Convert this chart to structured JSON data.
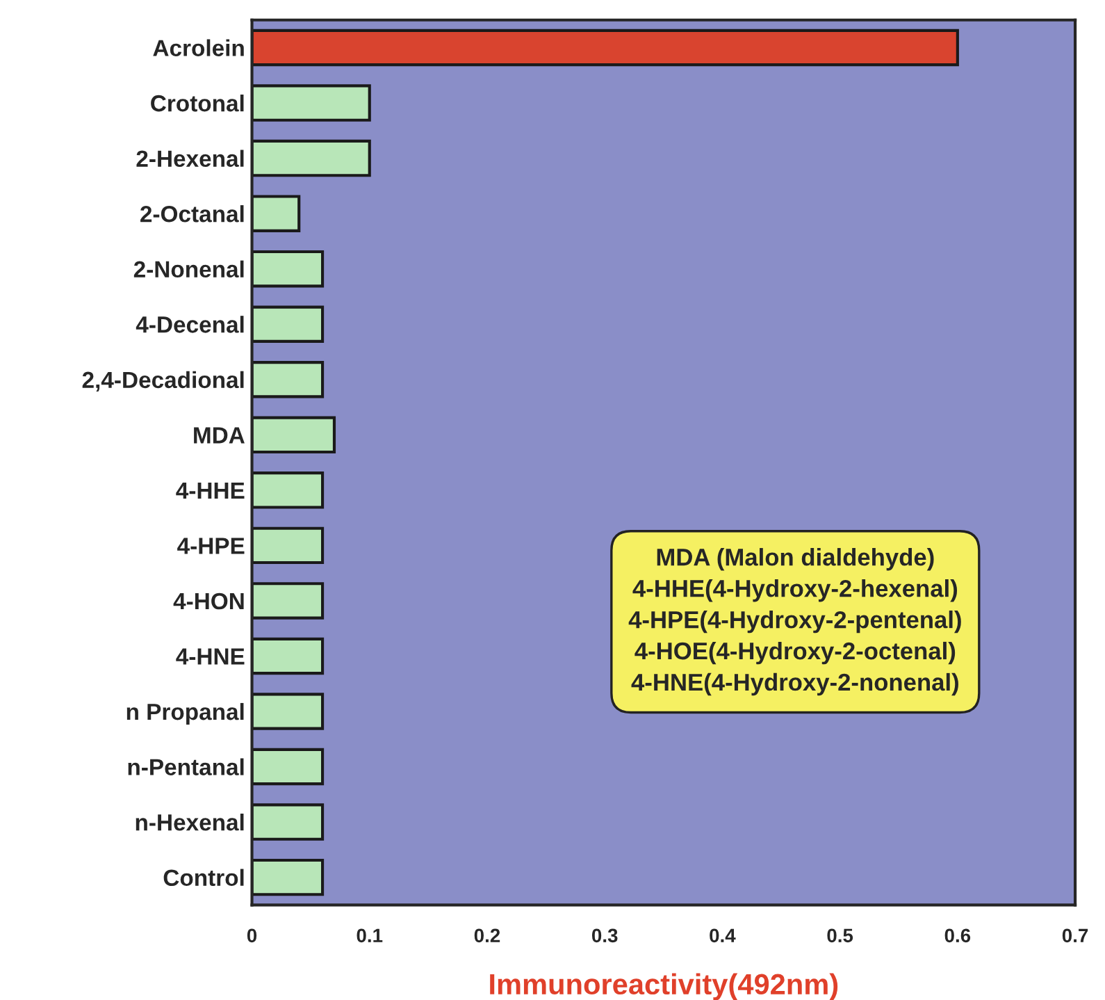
{
  "chart_data": {
    "type": "bar",
    "orientation": "horizontal",
    "categories": [
      "Acrolein",
      "Crotonal",
      "2-Hexenal",
      "2-Octanal",
      "2-Nonenal",
      "4-Decenal",
      "2,4-Decadional",
      "MDA",
      "4-HHE",
      "4-HPE",
      "4-HON",
      "4-HNE",
      "n Propanal",
      "n-Pentanal",
      "n-Hexenal",
      "Control"
    ],
    "values": [
      0.6,
      0.1,
      0.1,
      0.04,
      0.06,
      0.06,
      0.06,
      0.07,
      0.06,
      0.06,
      0.06,
      0.06,
      0.06,
      0.06,
      0.06,
      0.06
    ],
    "colors": [
      "#d9442f",
      "#b8e6b8",
      "#b8e6b8",
      "#b8e6b8",
      "#b8e6b8",
      "#b8e6b8",
      "#b8e6b8",
      "#b8e6b8",
      "#b8e6b8",
      "#b8e6b8",
      "#b8e6b8",
      "#b8e6b8",
      "#b8e6b8",
      "#b8e6b8",
      "#b8e6b8",
      "#b8e6b8"
    ],
    "xlabel": "Immunoreactivity(492nm)",
    "xlim": [
      0,
      0.7
    ],
    "xticks": [
      0,
      0.1,
      0.2,
      0.3,
      0.4,
      0.5,
      0.6,
      0.7
    ],
    "grid": false,
    "legend": false,
    "annotations": [
      "MDA (Malon dialdehyde)\n4-HHE(4-Hydroxy-2-hexenal)\n4-HPE(4-Hydroxy-2-pentenal)\n4-HOE(4-Hydroxy-2-octenal)\n4-HNE(4-Hydroxy-2-nonenal)"
    ]
  }
}
